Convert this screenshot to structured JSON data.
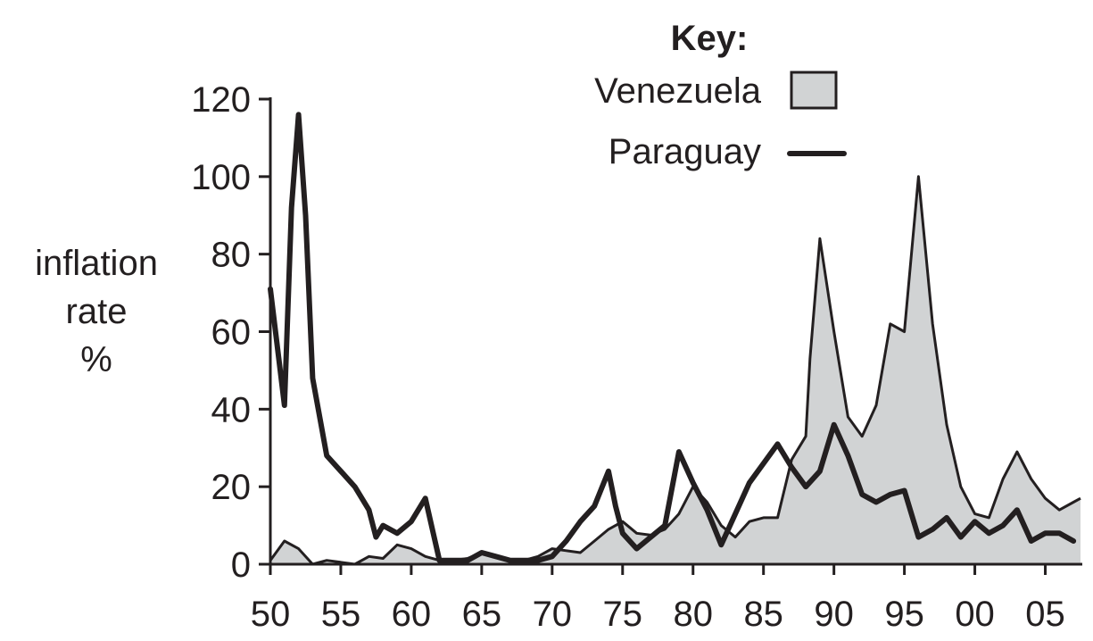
{
  "chart_data": {
    "type": "area",
    "title": "",
    "xlabel": "",
    "ylabel": [
      "inflation",
      "rate",
      "%"
    ],
    "x_ticks": [
      "50",
      "55",
      "60",
      "65",
      "70",
      "75",
      "80",
      "85",
      "90",
      "95",
      "00",
      "05"
    ],
    "y_ticks": [
      "0",
      "20",
      "40",
      "60",
      "80",
      "100",
      "120"
    ],
    "xlim": [
      1950,
      2007.5
    ],
    "ylim": [
      0,
      120
    ],
    "grid": false,
    "legend": {
      "title": "Key:",
      "placement": "top-right",
      "entries": [
        {
          "name": "Venezuela",
          "style": "filled-area"
        },
        {
          "name": "Paraguay",
          "style": "thick-line"
        }
      ]
    },
    "colors": {
      "venezuela_fill": "#d1d3d4",
      "line": "#231f20"
    },
    "series": [
      {
        "name": "Venezuela",
        "style": "area",
        "points": [
          [
            1950,
            1
          ],
          [
            1951,
            6
          ],
          [
            1952,
            4
          ],
          [
            1953,
            0
          ],
          [
            1954,
            1
          ],
          [
            1955,
            0.5
          ],
          [
            1956,
            0
          ],
          [
            1957,
            2
          ],
          [
            1958,
            1.5
          ],
          [
            1959,
            5
          ],
          [
            1960,
            4
          ],
          [
            1961,
            2
          ],
          [
            1962,
            1
          ],
          [
            1963,
            1
          ],
          [
            1964,
            1.5
          ],
          [
            1965,
            3
          ],
          [
            1966,
            2
          ],
          [
            1967,
            1
          ],
          [
            1968,
            1
          ],
          [
            1969,
            2
          ],
          [
            1970,
            4
          ],
          [
            1971,
            3.5
          ],
          [
            1972,
            3
          ],
          [
            1973,
            6
          ],
          [
            1974,
            9
          ],
          [
            1975,
            11
          ],
          [
            1976,
            8
          ],
          [
            1977,
            7.5
          ],
          [
            1978,
            9
          ],
          [
            1979,
            13
          ],
          [
            1980,
            20
          ],
          [
            1981,
            16
          ],
          [
            1982,
            10
          ],
          [
            1983,
            7
          ],
          [
            1984,
            11
          ],
          [
            1985,
            12
          ],
          [
            1986,
            12
          ],
          [
            1987,
            27
          ],
          [
            1988,
            33
          ],
          [
            1988.3,
            53
          ],
          [
            1989,
            84
          ],
          [
            1990,
            60
          ],
          [
            1991,
            38
          ],
          [
            1992,
            33
          ],
          [
            1993,
            41
          ],
          [
            1994,
            62
          ],
          [
            1995,
            60
          ],
          [
            1996,
            100
          ],
          [
            1997,
            62
          ],
          [
            1998,
            36
          ],
          [
            1999,
            20
          ],
          [
            2000,
            13
          ],
          [
            2001,
            12
          ],
          [
            2002,
            22
          ],
          [
            2003,
            29
          ],
          [
            2004,
            22
          ],
          [
            2005,
            17
          ],
          [
            2006,
            14
          ],
          [
            2007,
            16
          ]
        ]
      },
      {
        "name": "Paraguay",
        "style": "line",
        "points": [
          [
            1950,
            71
          ],
          [
            1951,
            41
          ],
          [
            1951.5,
            92
          ],
          [
            1952,
            116
          ],
          [
            1952.5,
            90
          ],
          [
            1953,
            48
          ],
          [
            1954,
            28
          ],
          [
            1955,
            24
          ],
          [
            1956,
            20
          ],
          [
            1957,
            14
          ],
          [
            1957.5,
            7
          ],
          [
            1958,
            10
          ],
          [
            1959,
            8
          ],
          [
            1960,
            11
          ],
          [
            1961,
            17
          ],
          [
            1962,
            1
          ],
          [
            1963,
            1
          ],
          [
            1964,
            1
          ],
          [
            1965,
            3
          ],
          [
            1966,
            2
          ],
          [
            1967,
            1
          ],
          [
            1968,
            1
          ],
          [
            1969,
            1
          ],
          [
            1970,
            2
          ],
          [
            1971,
            6
          ],
          [
            1972,
            11
          ],
          [
            1973,
            15
          ],
          [
            1974,
            24
          ],
          [
            1974.5,
            15
          ],
          [
            1975,
            8
          ],
          [
            1976,
            4
          ],
          [
            1977,
            7
          ],
          [
            1978,
            10
          ],
          [
            1979,
            29
          ],
          [
            1980,
            21
          ],
          [
            1981,
            14
          ],
          [
            1982,
            5
          ],
          [
            1983,
            13
          ],
          [
            1984,
            21
          ],
          [
            1985,
            26
          ],
          [
            1986,
            31
          ],
          [
            1987,
            25
          ],
          [
            1988,
            20
          ],
          [
            1989,
            24
          ],
          [
            1990,
            36
          ],
          [
            1991,
            28
          ],
          [
            1992,
            18
          ],
          [
            1993,
            16
          ],
          [
            1994,
            18
          ],
          [
            1995,
            19
          ],
          [
            1996,
            7
          ],
          [
            1997,
            9
          ],
          [
            1998,
            12
          ],
          [
            1999,
            7
          ],
          [
            2000,
            11
          ],
          [
            2001,
            8
          ],
          [
            2002,
            10
          ],
          [
            2003,
            14
          ],
          [
            2004,
            6
          ],
          [
            2005,
            8
          ],
          [
            2006,
            8
          ],
          [
            2007,
            6
          ]
        ]
      }
    ]
  }
}
